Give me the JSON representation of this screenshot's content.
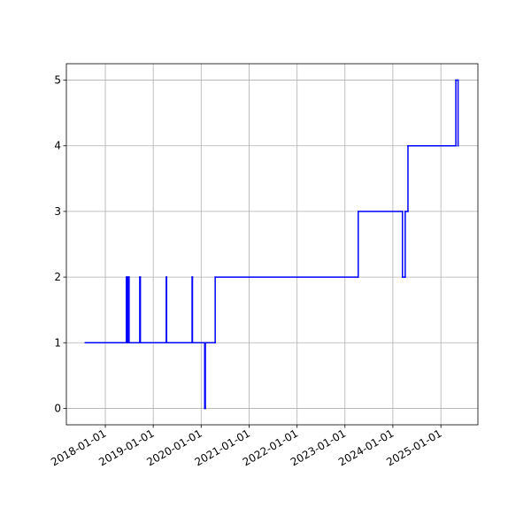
{
  "chart_data": {
    "type": "step",
    "x": [
      "2017-08-01",
      "2018-06-10",
      "2018-06-18",
      "2018-06-22",
      "2018-07-01",
      "2018-09-20",
      "2018-09-25",
      "2019-04-10",
      "2019-04-13",
      "2019-10-24",
      "2019-10-27",
      "2020-01-28",
      "2020-02-02",
      "2020-04-17",
      "2023-04-12",
      "2024-03-14",
      "2024-04-04",
      "2024-04-25",
      "2025-04-25",
      "2025-05-12"
    ],
    "series": [
      {
        "color": "#0000ff",
        "values": [
          1,
          2,
          1,
          2,
          1,
          2,
          1,
          2,
          1,
          2,
          1,
          0,
          1,
          2,
          3,
          2,
          3,
          4,
          5,
          4
        ]
      }
    ],
    "xlim": [
      "2017-03-10",
      "2025-10-10"
    ],
    "xticks": [
      "2018-01-01",
      "2019-01-01",
      "2020-01-01",
      "2021-01-01",
      "2022-01-01",
      "2023-01-01",
      "2024-01-01",
      "2025-01-01"
    ],
    "ylim": [
      -0.25,
      5.25
    ],
    "yticks": [
      0,
      1,
      2,
      3,
      4,
      5
    ],
    "grid": true
  }
}
